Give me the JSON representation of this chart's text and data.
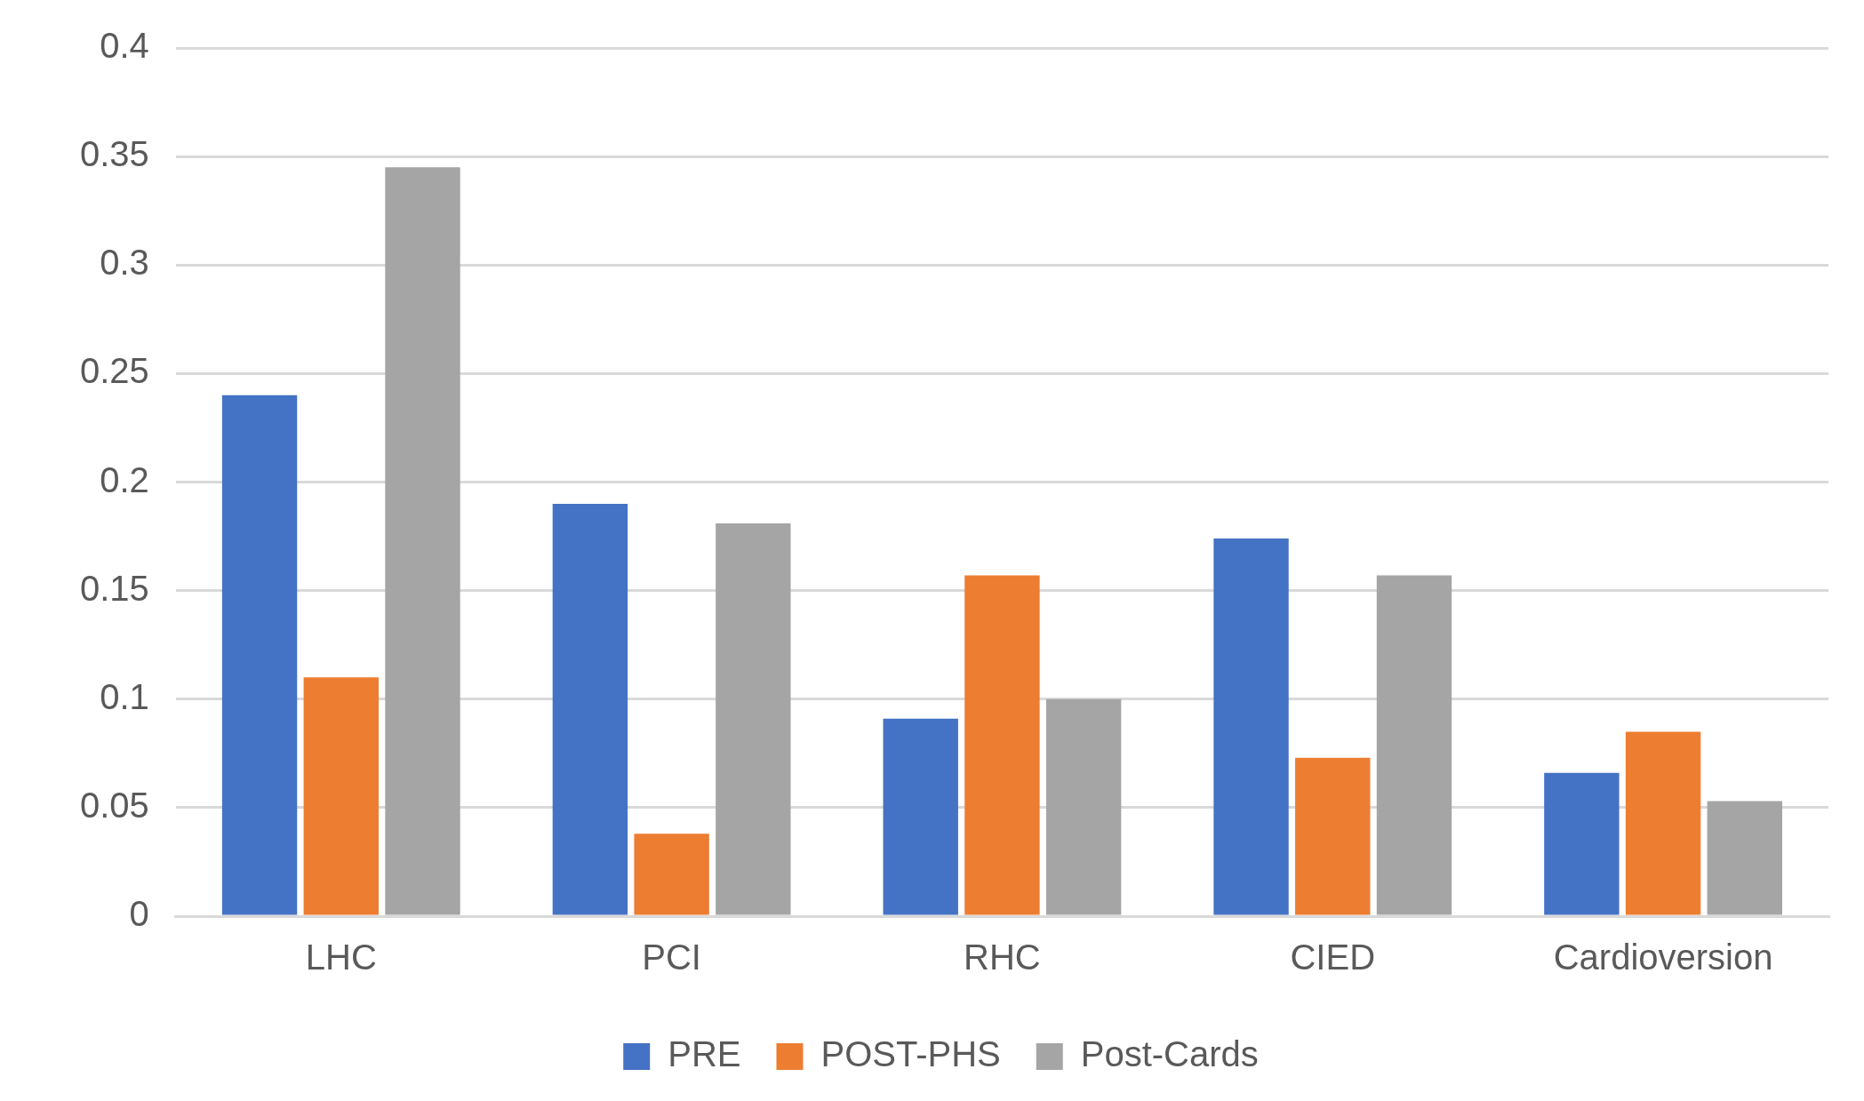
{
  "chart_data": {
    "type": "bar",
    "categories": [
      "LHC",
      "PCI",
      "RHC",
      "CIED",
      "Cardioversion"
    ],
    "series": [
      {
        "name": "PRE",
        "color": "#4472c4",
        "values": [
          0.24,
          0.19,
          0.091,
          0.174,
          0.066
        ]
      },
      {
        "name": "POST-PHS",
        "color": "#ed7d31",
        "values": [
          0.11,
          0.038,
          0.157,
          0.073,
          0.085
        ]
      },
      {
        "name": "Post-Cards",
        "color": "#a5a5a5",
        "values": [
          0.345,
          0.181,
          0.1,
          0.157,
          0.053
        ]
      }
    ],
    "ylim": [
      0,
      0.4
    ],
    "yticks": [
      0,
      0.05,
      0.1,
      0.15,
      0.2,
      0.25,
      0.3,
      0.35,
      0.4
    ],
    "grid": "y",
    "legend": "bottom"
  }
}
